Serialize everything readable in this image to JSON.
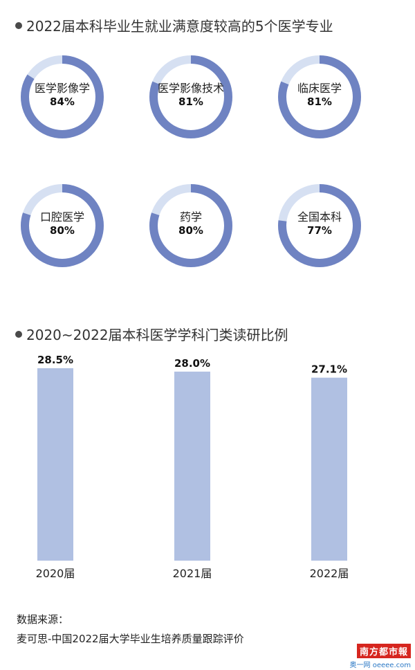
{
  "section1_title": "2022届本科毕业生就业满意度较高的5个医学专业",
  "section2_title": "2020~2022届本科医学学科门类读研比例",
  "colors": {
    "ring": "#6f83c2",
    "ring_bg": "#d6e0f2",
    "bar": "#b0c0e2"
  },
  "chart_data": [
    {
      "type": "pie",
      "title": "2022届本科毕业生就业满意度较高的5个医学专业",
      "categories": [
        "医学影像学",
        "医学影像技术",
        "临床医学",
        "口腔医学",
        "药学",
        "全国本科"
      ],
      "values": [
        84,
        81,
        81,
        80,
        80,
        77
      ],
      "labels": [
        "84%",
        "81%",
        "81%",
        "80%",
        "80%",
        "77%"
      ]
    },
    {
      "type": "bar",
      "title": "2020~2022届本科医学学科门类读研比例",
      "categories": [
        "2020届",
        "2021届",
        "2022届"
      ],
      "values": [
        28.5,
        28.0,
        27.1
      ],
      "labels": [
        "28.5%",
        "28.0%",
        "27.1%"
      ],
      "xlabel": "",
      "ylabel": "",
      "ylim": [
        0,
        28.5
      ]
    }
  ],
  "source_label": "数据来源：",
  "source_text": "麦可思-中国2022届大学毕业生培养质量跟踪评价",
  "logo": {
    "brand": "南方都市報",
    "sub": "奥一网 oeeee.com"
  }
}
